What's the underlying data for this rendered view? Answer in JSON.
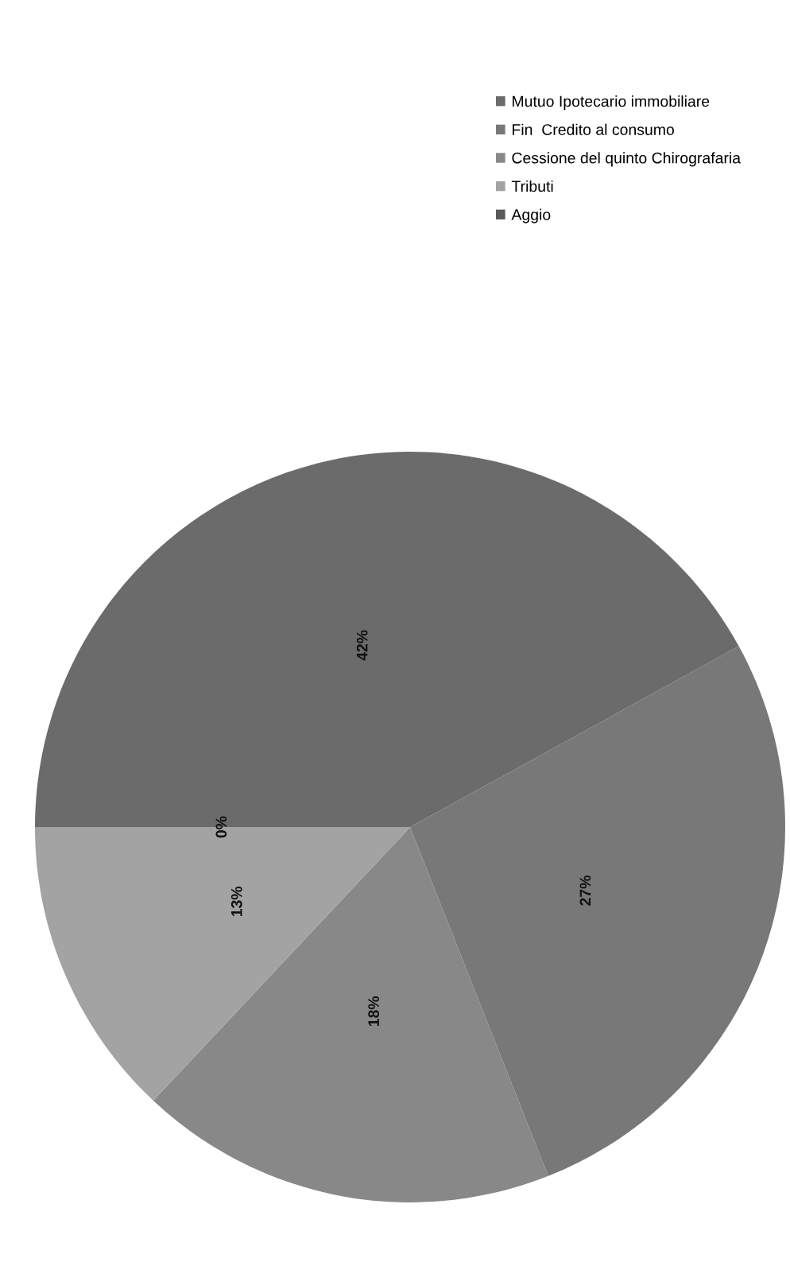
{
  "chart_data": {
    "type": "pie",
    "categories": [
      "Mutuo Ipotecario immobiliare",
      "Fin  Credito al consumo",
      "Cessione del quinto Chirografaria",
      "Tributi",
      "Aggio"
    ],
    "values": [
      42,
      27,
      18,
      13,
      0
    ],
    "colors": [
      "#6b6b6b",
      "#787878",
      "#888888",
      "#a3a3a3",
      "#5a5a5a"
    ],
    "value_labels": [
      "42%",
      "27%",
      "18%",
      "13%",
      "0%"
    ],
    "legend": "right"
  }
}
